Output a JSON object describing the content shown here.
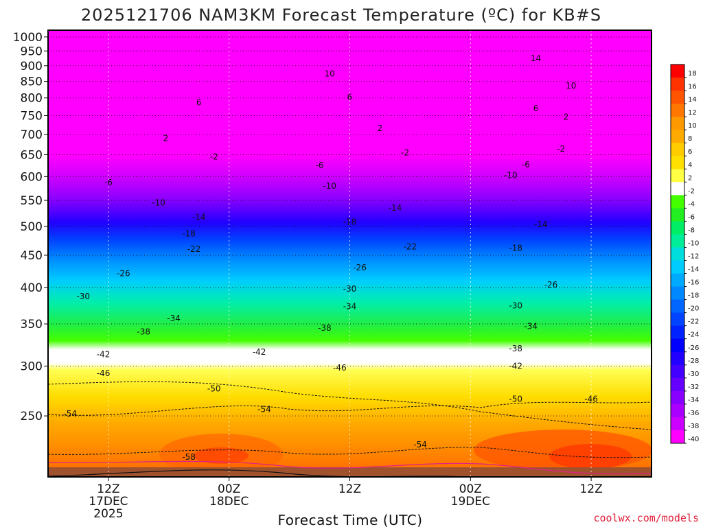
{
  "title": "2025121706 NAM3KM Forecast Temperature (ºC) for KB#S",
  "credit": "coolwx.com/models",
  "chart_data": {
    "type": "heatmap",
    "title": "2025121706 NAM3KM Forecast Temperature (ºC) for KB#S",
    "xlabel": "Forecast Time (UTC)",
    "ylabel": "",
    "x_ticks": [
      {
        "hour": 6,
        "lines": [
          "12Z",
          "17DEC",
          "2025"
        ]
      },
      {
        "hour": 18,
        "lines": [
          "00Z",
          "18DEC"
        ]
      },
      {
        "hour": 30,
        "lines": [
          "12Z"
        ]
      },
      {
        "hour": 42,
        "lines": [
          "00Z",
          "19DEC"
        ]
      },
      {
        "hour": 54,
        "lines": [
          "12Z"
        ]
      }
    ],
    "xlim_hours": [
      0,
      60
    ],
    "y_ticks": [
      250,
      300,
      350,
      400,
      450,
      500,
      550,
      600,
      650,
      700,
      750,
      800,
      850,
      900,
      950,
      1000
    ],
    "ylim_hpa": [
      1025,
      200
    ],
    "colorbar": {
      "levels": [
        18,
        16,
        14,
        12,
        10,
        8,
        6,
        4,
        2,
        -2,
        -4,
        -6,
        -8,
        -10,
        -12,
        -14,
        -16,
        -18,
        -20,
        -22,
        -24,
        -26,
        -28,
        -30,
        -32,
        -34,
        -36,
        -38,
        -40
      ],
      "colors": [
        "#ff0000",
        "#ff3300",
        "#ff5500",
        "#ff7700",
        "#ff9900",
        "#ffaa00",
        "#ffcc00",
        "#ffe000",
        "#ffff44",
        "#ffffff",
        "#44ff00",
        "#22ee22",
        "#00ee66",
        "#00ee99",
        "#00dddd",
        "#00ccff",
        "#00aaff",
        "#0088ff",
        "#0066ff",
        "#0044ff",
        "#0022ff",
        "#0000ff",
        "#2200ff",
        "#4400ff",
        "#6600ff",
        "#8800ff",
        "#aa00ff",
        "#cc00ff",
        "#ff00ff"
      ]
    },
    "contour_labels": [
      {
        "text": "-58",
        "hour": 14.0,
        "p": 215
      },
      {
        "text": "-54",
        "hour": 2.2,
        "p": 252
      },
      {
        "text": "-54",
        "hour": 21.5,
        "p": 256
      },
      {
        "text": "-54",
        "hour": 37.0,
        "p": 225
      },
      {
        "text": "-50",
        "hour": 16.5,
        "p": 276
      },
      {
        "text": "-50",
        "hour": 46.5,
        "p": 266
      },
      {
        "text": "-46",
        "hour": 54.0,
        "p": 266
      },
      {
        "text": "-46",
        "hour": 5.5,
        "p": 292
      },
      {
        "text": "-46",
        "hour": 29.0,
        "p": 298
      },
      {
        "text": "-42",
        "hour": 5.5,
        "p": 313
      },
      {
        "text": "-42",
        "hour": 21.0,
        "p": 316
      },
      {
        "text": "-42",
        "hour": 46.5,
        "p": 300
      },
      {
        "text": "-38",
        "hour": 9.5,
        "p": 340
      },
      {
        "text": "-38",
        "hour": 27.5,
        "p": 345
      },
      {
        "text": "-38",
        "hour": 46.5,
        "p": 320
      },
      {
        "text": "-34",
        "hour": 12.5,
        "p": 357
      },
      {
        "text": "-34",
        "hour": 30.0,
        "p": 373
      },
      {
        "text": "-34",
        "hour": 48.0,
        "p": 347
      },
      {
        "text": "-30",
        "hour": 3.5,
        "p": 387
      },
      {
        "text": "-30",
        "hour": 30.0,
        "p": 398
      },
      {
        "text": "-30",
        "hour": 46.5,
        "p": 374
      },
      {
        "text": "-26",
        "hour": 7.5,
        "p": 421
      },
      {
        "text": "-26",
        "hour": 31.0,
        "p": 430
      },
      {
        "text": "-26",
        "hour": 50.0,
        "p": 404
      },
      {
        "text": "-22",
        "hour": 14.5,
        "p": 460
      },
      {
        "text": "-22",
        "hour": 36.0,
        "p": 464
      },
      {
        "text": "-18",
        "hour": 14.0,
        "p": 487
      },
      {
        "text": "-18",
        "hour": 30.0,
        "p": 508
      },
      {
        "text": "-18",
        "hour": 46.5,
        "p": 462
      },
      {
        "text": "-14",
        "hour": 15.0,
        "p": 517
      },
      {
        "text": "-14",
        "hour": 34.5,
        "p": 535
      },
      {
        "text": "-14",
        "hour": 49.0,
        "p": 504
      },
      {
        "text": "-10",
        "hour": 11.0,
        "p": 545
      },
      {
        "text": "-10",
        "hour": 28.0,
        "p": 580
      },
      {
        "text": "-10",
        "hour": 46.0,
        "p": 603
      },
      {
        "text": "-6",
        "hour": 6.0,
        "p": 587
      },
      {
        "text": "-6",
        "hour": 27.0,
        "p": 625
      },
      {
        "text": "-6",
        "hour": 47.5,
        "p": 627
      },
      {
        "text": "-2",
        "hour": 16.5,
        "p": 645
      },
      {
        "text": "-2",
        "hour": 35.5,
        "p": 655
      },
      {
        "text": "-2",
        "hour": 51.0,
        "p": 664
      },
      {
        "text": "2",
        "hour": 11.7,
        "p": 690
      },
      {
        "text": "2",
        "hour": 33.0,
        "p": 716
      },
      {
        "text": "2",
        "hour": 51.5,
        "p": 746
      },
      {
        "text": "6",
        "hour": 15.0,
        "p": 787
      },
      {
        "text": "6",
        "hour": 30.0,
        "p": 802
      },
      {
        "text": "6",
        "hour": 48.5,
        "p": 770
      },
      {
        "text": "10",
        "hour": 28.0,
        "p": 874
      },
      {
        "text": "10",
        "hour": 52.0,
        "p": 836
      },
      {
        "text": "14",
        "hour": 48.5,
        "p": 925
      }
    ]
  }
}
